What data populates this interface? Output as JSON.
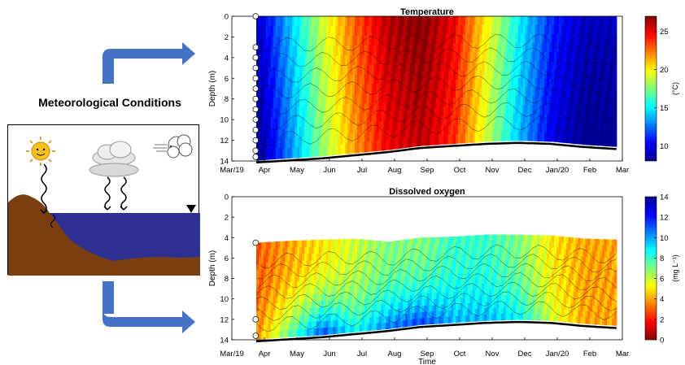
{
  "left_panel": {
    "title": "Meteorological Conditions",
    "icons": [
      "sun-icon",
      "cloud-rain-icon",
      "wind-icon",
      "water-level-marker-icon"
    ]
  },
  "colors": {
    "arrow": "#4472c4",
    "lake_water": "#2e3192",
    "lake_bed": "#7a3e10",
    "sun": "#f7c11a"
  },
  "chart_data": [
    {
      "type": "heatmap",
      "title": "Temperature",
      "xlabel": "",
      "ylabel": "Depth (m)",
      "x_ticks": [
        "Mar/19",
        "Apr",
        "May",
        "Jun",
        "Jul",
        "Aug",
        "Sep",
        "Oct",
        "Nov",
        "Dec",
        "Jan/20",
        "Feb",
        "Mar"
      ],
      "y_ticks": [
        0,
        2,
        4,
        6,
        8,
        10,
        12,
        14
      ],
      "ylim": [
        14,
        0
      ],
      "colorbar": {
        "label": "(°C)",
        "ticks": [
          10,
          15,
          20,
          25
        ],
        "range": [
          8,
          27
        ]
      },
      "monthly_surface_values": [
        9,
        14,
        19,
        23,
        26,
        27,
        25,
        20,
        15,
        11,
        9,
        9
      ],
      "monthly_bottom_depth": [
        13.9,
        13.7,
        13.5,
        13.2,
        12.9,
        12.5,
        12.3,
        12.1,
        12.0,
        12.1,
        12.4,
        12.6
      ],
      "grid": false
    },
    {
      "type": "heatmap",
      "title": "Dissolved oxygen",
      "xlabel": "Time",
      "ylabel": "Depth (m)",
      "x_ticks": [
        "Mar/19",
        "Apr",
        "May",
        "Jun",
        "Jul",
        "Aug",
        "Sep",
        "Oct",
        "Nov",
        "Dec",
        "Jan/20",
        "Feb",
        "Mar"
      ],
      "y_ticks": [
        0,
        2,
        4,
        6,
        8,
        10,
        12,
        14
      ],
      "ylim": [
        14,
        0
      ],
      "colorbar": {
        "label": "(mg L⁻¹)",
        "ticks": [
          0,
          2,
          4,
          6,
          8,
          10,
          12,
          14
        ],
        "range": [
          0,
          14
        ]
      },
      "monthly_surface_values": [
        11,
        10,
        9,
        8,
        7,
        7,
        6,
        6,
        7,
        9,
        10,
        10
      ],
      "monthly_bottom_values": [
        10,
        6,
        2,
        5,
        3,
        2,
        4,
        4,
        5,
        8,
        10,
        10
      ],
      "monthly_top_depth": [
        4.5,
        4.3,
        4.2,
        4.1,
        4.4,
        4.0,
        3.9,
        3.7,
        3.7,
        3.8,
        4.1,
        4.2
      ],
      "monthly_bottom_depth": [
        13.9,
        13.7,
        13.5,
        13.2,
        12.9,
        12.5,
        12.3,
        12.1,
        12.0,
        12.1,
        12.4,
        12.6
      ],
      "grid": false
    }
  ]
}
